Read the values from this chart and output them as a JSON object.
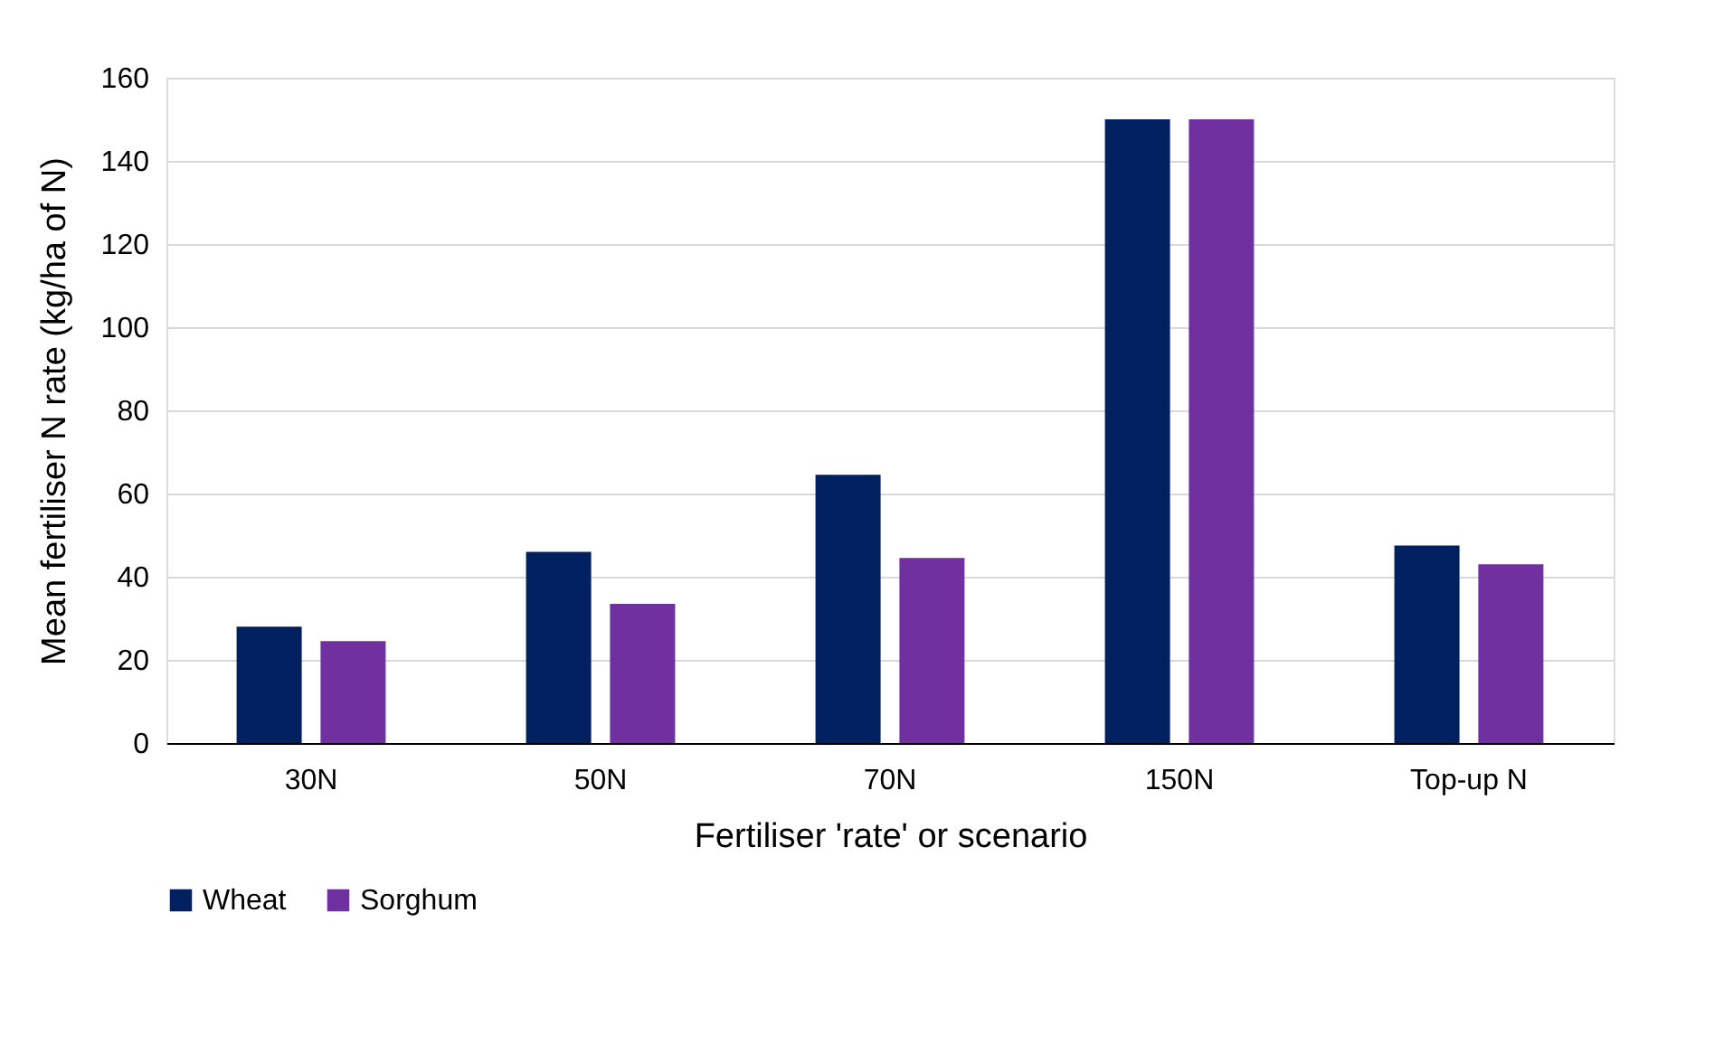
{
  "chart_data": {
    "type": "bar",
    "xlabel": "Fertiliser 'rate' or scenario",
    "ylabel": "Mean fertiliser N rate (kg/ha of N)",
    "categories": [
      "30N",
      "50N",
      "70N",
      "150N",
      "Top-up N"
    ],
    "series": [
      {
        "name": "Wheat",
        "color": "#002060",
        "values": [
          28,
          46,
          64.5,
          150,
          47.5
        ]
      },
      {
        "name": "Sorghum",
        "color": "#7030a0",
        "values": [
          24.5,
          33.5,
          44.5,
          150,
          43
        ]
      }
    ],
    "ylim": [
      0,
      160
    ],
    "yticks": [
      0,
      20,
      40,
      60,
      80,
      100,
      120,
      140,
      160
    ],
    "grid": "y",
    "legend": "bottom"
  }
}
